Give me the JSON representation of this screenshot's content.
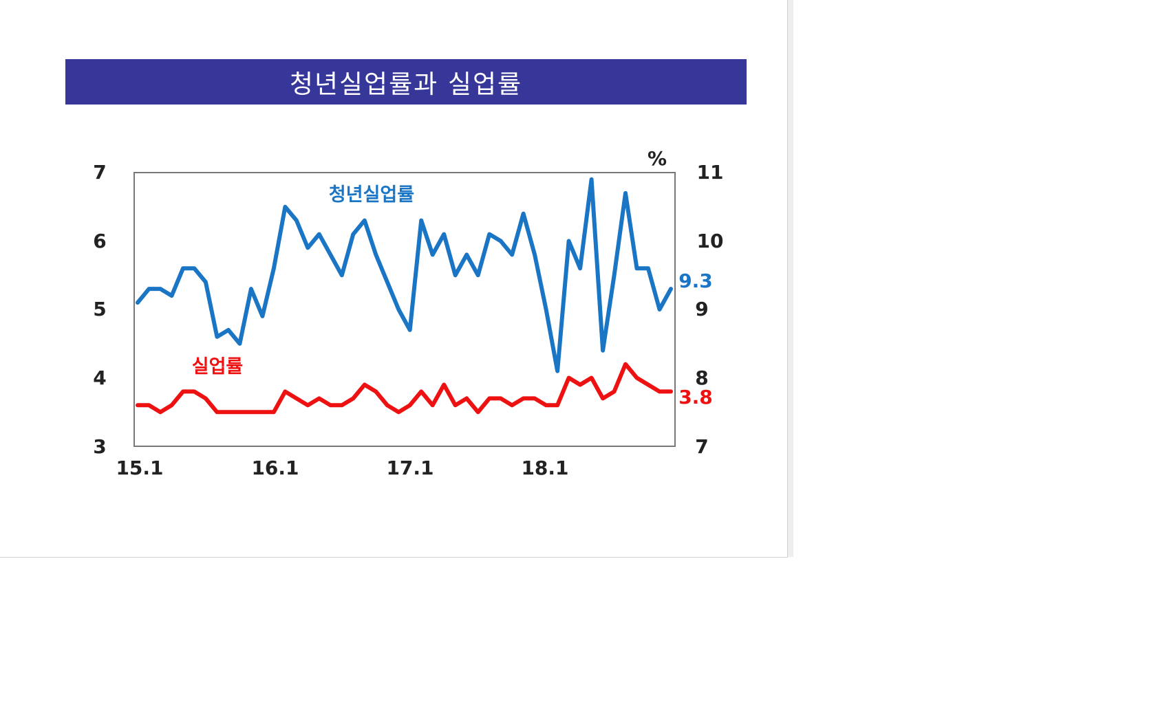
{
  "title": "청년실업률과 실업률",
  "colors": {
    "title_bar": "#37379a",
    "youth_series": "#1a75c4",
    "unemployment_series": "#ee1111",
    "axis": "#777777"
  },
  "chart_data": {
    "type": "line",
    "title": "청년실업률과 실업률",
    "unit_label": "%",
    "x_tick_labels": [
      "15.1",
      "16.1",
      "17.1",
      "18.1"
    ],
    "left_axis": {
      "ylim": [
        3,
        7
      ],
      "ticks": [
        "3",
        "4",
        "5",
        "6",
        "7"
      ]
    },
    "right_axis": {
      "ylim": [
        7,
        11
      ],
      "ticks": [
        "7",
        "8",
        "9",
        "10",
        "11"
      ]
    },
    "grid": false,
    "series": [
      {
        "name": "청년실업률",
        "axis": "right",
        "end_label": "9.3",
        "values": [
          9.1,
          9.3,
          9.3,
          9.2,
          9.6,
          9.6,
          9.4,
          8.6,
          8.7,
          8.5,
          9.3,
          8.9,
          9.6,
          10.5,
          10.3,
          9.9,
          10.1,
          9.8,
          9.5,
          10.1,
          10.3,
          9.8,
          9.4,
          9.0,
          8.7,
          10.3,
          9.8,
          10.1,
          9.5,
          9.8,
          9.5,
          10.1,
          10.0,
          9.8,
          10.4,
          9.8,
          9.0,
          8.1,
          10.0,
          9.6,
          10.9,
          8.4,
          9.5,
          10.7,
          9.6,
          9.6,
          9.0,
          9.3
        ]
      },
      {
        "name": "실업률",
        "axis": "left",
        "end_label": "3.8",
        "values": [
          3.6,
          3.6,
          3.5,
          3.6,
          3.8,
          3.8,
          3.7,
          3.5,
          3.5,
          3.5,
          3.5,
          3.5,
          3.5,
          3.8,
          3.7,
          3.6,
          3.7,
          3.6,
          3.6,
          3.7,
          3.9,
          3.8,
          3.6,
          3.5,
          3.6,
          3.8,
          3.6,
          3.9,
          3.6,
          3.7,
          3.5,
          3.7,
          3.7,
          3.6,
          3.7,
          3.7,
          3.6,
          3.6,
          4.0,
          3.9,
          4.0,
          3.7,
          3.8,
          4.2,
          4.0,
          3.9,
          3.8,
          3.8
        ]
      }
    ]
  }
}
